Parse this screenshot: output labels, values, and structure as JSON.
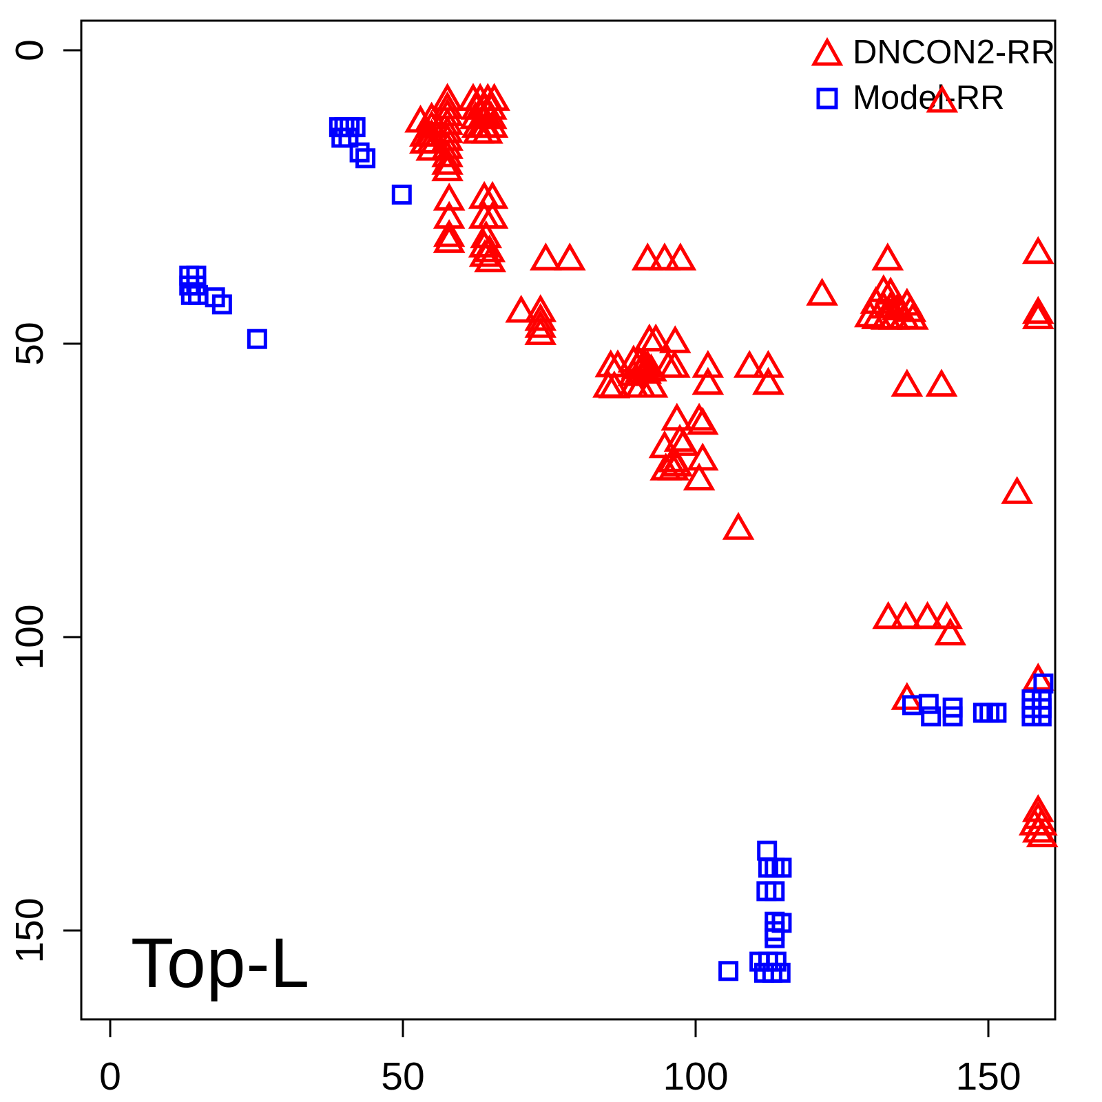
{
  "chart_data": {
    "type": "scatter",
    "title": "Top-L",
    "x_axis": {
      "ticks": [
        "0",
        "50",
        "100",
        "150"
      ],
      "tick_values": [
        0,
        50,
        100,
        150
      ],
      "range": [
        -5,
        161
      ],
      "label": ""
    },
    "y_axis": {
      "ticks": [
        "0",
        "50",
        "100",
        "150"
      ],
      "tick_values": [
        0,
        50,
        100,
        150
      ],
      "range": [
        -5,
        165
      ],
      "inverted": true,
      "label": ""
    },
    "grid": false,
    "legend_position": "top-right",
    "frame_color": "#000000",
    "legend": [
      {
        "label": "DNCON2-RR",
        "marker": "triangle",
        "color": "#ff0000"
      },
      {
        "label": "Model-RR",
        "marker": "square",
        "color": "#0000ff"
      }
    ],
    "series": [
      {
        "name": "DNCON2-RR",
        "marker": "triangle",
        "color": "#ff0000",
        "points": [
          [
            57.6,
            8.5
          ],
          [
            57.6,
            9.9
          ],
          [
            57.6,
            11.1
          ],
          [
            57.6,
            12.6
          ],
          [
            57.6,
            14.0
          ],
          [
            57.6,
            15.3
          ],
          [
            57.6,
            16.7
          ],
          [
            57.6,
            18.1
          ],
          [
            57.6,
            19.4
          ],
          [
            57.6,
            20.5
          ],
          [
            54.9,
            11.7
          ],
          [
            54.9,
            13.1
          ],
          [
            54.9,
            14.6
          ],
          [
            54.9,
            15.8
          ],
          [
            54.9,
            17.0
          ],
          [
            53.8,
            14.6
          ],
          [
            53.8,
            15.8
          ],
          [
            53.0,
            12.2
          ],
          [
            62.0,
            8.5
          ],
          [
            63.2,
            8.5
          ],
          [
            64.5,
            8.5
          ],
          [
            65.6,
            8.5
          ],
          [
            62.6,
            10.0
          ],
          [
            63.9,
            10.0
          ],
          [
            65.1,
            10.0
          ],
          [
            62.4,
            11.6
          ],
          [
            63.8,
            11.6
          ],
          [
            65.1,
            11.6
          ],
          [
            62.7,
            13.1
          ],
          [
            64.1,
            13.1
          ],
          [
            65.3,
            13.1
          ],
          [
            62.9,
            14.1
          ],
          [
            64.4,
            14.1
          ],
          [
            57.9,
            25.5
          ],
          [
            57.9,
            28.6
          ],
          [
            57.9,
            31.7
          ],
          [
            57.9,
            32.7
          ],
          [
            63.9,
            25.2
          ],
          [
            65.3,
            25.2
          ],
          [
            63.9,
            28.6
          ],
          [
            65.3,
            28.6
          ],
          [
            64.2,
            31.9
          ],
          [
            63.9,
            33.5
          ],
          [
            64.8,
            34.3
          ],
          [
            64.0,
            35.1
          ],
          [
            64.9,
            36.0
          ],
          [
            74.4,
            35.7
          ],
          [
            78.5,
            35.7
          ],
          [
            91.8,
            35.7
          ],
          [
            94.7,
            35.7
          ],
          [
            97.4,
            35.7
          ],
          [
            70.2,
            44.6
          ],
          [
            73.5,
            44.5
          ],
          [
            73.5,
            46.0
          ],
          [
            73.5,
            47.2
          ],
          [
            73.5,
            48.4
          ],
          [
            92.1,
            49.5
          ],
          [
            93.2,
            49.5
          ],
          [
            96.5,
            49.8
          ],
          [
            85.5,
            53.9
          ],
          [
            86.7,
            53.9
          ],
          [
            89.4,
            53.1
          ],
          [
            90.4,
            53.4
          ],
          [
            91.2,
            53.6
          ],
          [
            90.0,
            54.2
          ],
          [
            90.9,
            54.2
          ],
          [
            91.8,
            54.0
          ],
          [
            90.6,
            54.8
          ],
          [
            91.5,
            55.0
          ],
          [
            92.4,
            54.6
          ],
          [
            89.4,
            55.4
          ],
          [
            95.3,
            54.0
          ],
          [
            96.4,
            54.0
          ],
          [
            85.1,
            57.4
          ],
          [
            86.1,
            57.5
          ],
          [
            89.4,
            57.4
          ],
          [
            90.6,
            57.4
          ],
          [
            92.6,
            57.4
          ],
          [
            102.1,
            54.0
          ],
          [
            102.1,
            56.9
          ],
          [
            109.2,
            54.0
          ],
          [
            112.4,
            54.0
          ],
          [
            112.4,
            56.9
          ],
          [
            96.8,
            63.0
          ],
          [
            100.6,
            63.0
          ],
          [
            101.2,
            63.7
          ],
          [
            94.7,
            67.7
          ],
          [
            97.3,
            66.6
          ],
          [
            97.9,
            67.3
          ],
          [
            96.2,
            70.1
          ],
          [
            96.8,
            70.8
          ],
          [
            96.2,
            71.5
          ],
          [
            101.2,
            69.8
          ],
          [
            100.6,
            73.2
          ],
          [
            94.9,
            71.5
          ],
          [
            107.3,
            81.6
          ],
          [
            121.6,
            41.7
          ],
          [
            132.8,
            35.7
          ],
          [
            132.1,
            41.1
          ],
          [
            133.3,
            41.5
          ],
          [
            130.8,
            43.1
          ],
          [
            132.1,
            43.9
          ],
          [
            133.3,
            43.9
          ],
          [
            134.5,
            44.2
          ],
          [
            136.1,
            43.4
          ],
          [
            136.7,
            44.5
          ],
          [
            129.8,
            45.4
          ],
          [
            131.0,
            45.7
          ],
          [
            132.6,
            45.8
          ],
          [
            133.9,
            45.8
          ],
          [
            135.6,
            45.7
          ],
          [
            137.1,
            45.8
          ],
          [
            136.1,
            57.2
          ],
          [
            142.0,
            57.2
          ],
          [
            158.5,
            34.6
          ],
          [
            158.5,
            44.8
          ],
          [
            158.5,
            45.7
          ],
          [
            154.9,
            75.5
          ],
          [
            142.1,
            8.8
          ],
          [
            132.9,
            96.8
          ],
          [
            135.9,
            96.8
          ],
          [
            139.6,
            96.8
          ],
          [
            142.9,
            96.8
          ],
          [
            143.5,
            99.6
          ],
          [
            136.1,
            110.6
          ],
          [
            158.5,
            107.3
          ],
          [
            158.5,
            129.7
          ],
          [
            158.5,
            130.9
          ],
          [
            157.9,
            132.0
          ],
          [
            159.1,
            132.0
          ],
          [
            158.5,
            133.2
          ],
          [
            159.2,
            134.0
          ]
        ]
      },
      {
        "name": "Model-RR",
        "marker": "square",
        "color": "#0000ff",
        "points": [
          [
            39.1,
            13.1
          ],
          [
            40.0,
            13.1
          ],
          [
            40.9,
            13.1
          ],
          [
            41.9,
            13.1
          ],
          [
            39.5,
            14.9
          ],
          [
            40.7,
            14.9
          ],
          [
            42.6,
            17.4
          ],
          [
            43.6,
            18.4
          ],
          [
            49.8,
            24.6
          ],
          [
            13.5,
            38.4
          ],
          [
            14.7,
            38.4
          ],
          [
            13.5,
            40.1
          ],
          [
            14.7,
            40.1
          ],
          [
            13.8,
            41.7
          ],
          [
            15.0,
            41.7
          ],
          [
            17.9,
            42.1
          ],
          [
            19.1,
            43.3
          ],
          [
            25.1,
            49.2
          ],
          [
            137.0,
            111.6
          ],
          [
            139.8,
            111.4
          ],
          [
            140.2,
            113.5
          ],
          [
            143.9,
            112.0
          ],
          [
            143.9,
            113.5
          ],
          [
            149.1,
            112.9
          ],
          [
            150.2,
            112.9
          ],
          [
            151.4,
            112.9
          ],
          [
            159.4,
            107.9
          ],
          [
            157.4,
            110.6
          ],
          [
            159.1,
            110.6
          ],
          [
            157.4,
            112.1
          ],
          [
            159.1,
            112.1
          ],
          [
            157.4,
            113.5
          ],
          [
            159.1,
            113.5
          ],
          [
            112.2,
            136.4
          ],
          [
            112.4,
            139.3
          ],
          [
            113.5,
            139.3
          ],
          [
            114.7,
            139.3
          ],
          [
            112.1,
            143.3
          ],
          [
            113.5,
            143.3
          ],
          [
            113.5,
            148.5
          ],
          [
            114.7,
            148.7
          ],
          [
            113.5,
            150.1
          ],
          [
            113.5,
            151.3
          ],
          [
            105.6,
            156.9
          ],
          [
            110.9,
            155.3
          ],
          [
            112.4,
            155.3
          ],
          [
            113.8,
            155.3
          ],
          [
            111.7,
            157.2
          ],
          [
            113.1,
            157.2
          ],
          [
            114.5,
            157.2
          ]
        ]
      }
    ]
  }
}
